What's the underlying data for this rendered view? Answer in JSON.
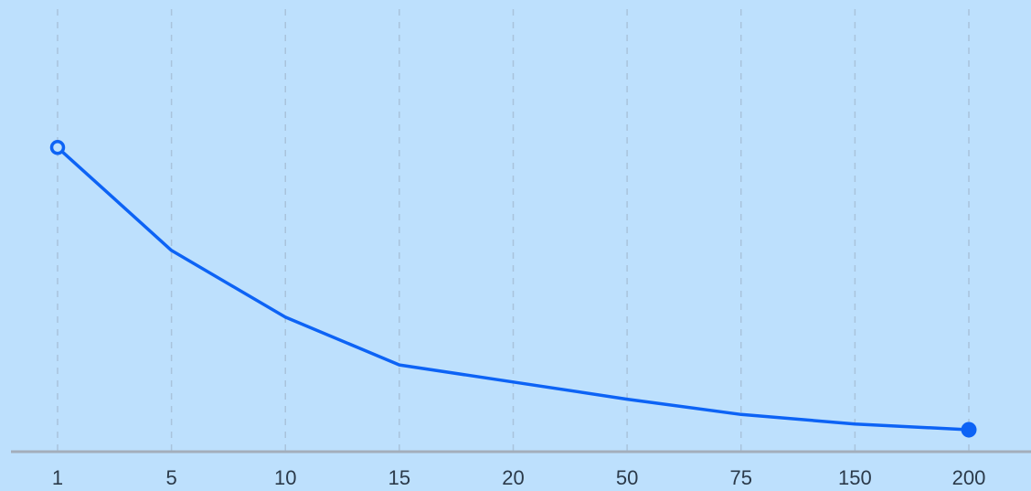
{
  "chart_data": {
    "type": "line",
    "title": "",
    "xlabel": "",
    "ylabel": "",
    "categories": [
      "1",
      "5",
      "10",
      "15",
      "20",
      "50",
      "75",
      "150",
      "200"
    ],
    "series": [
      {
        "values": [
          100,
          73,
          55.5,
          43,
          38.5,
          34,
          30,
          27.5,
          26
        ]
      }
    ],
    "ylim": [
      20,
      125
    ],
    "grid": "vertical dashed",
    "legend": "none",
    "markers": {
      "start": "hollow-circle",
      "end": "filled-circle"
    },
    "colors": {
      "background": "#bde0fd",
      "line": "#0d63f5",
      "gridline": "#a9c3dc",
      "axis": "#a3aebb",
      "tick_text": "#2b3a4a"
    }
  }
}
